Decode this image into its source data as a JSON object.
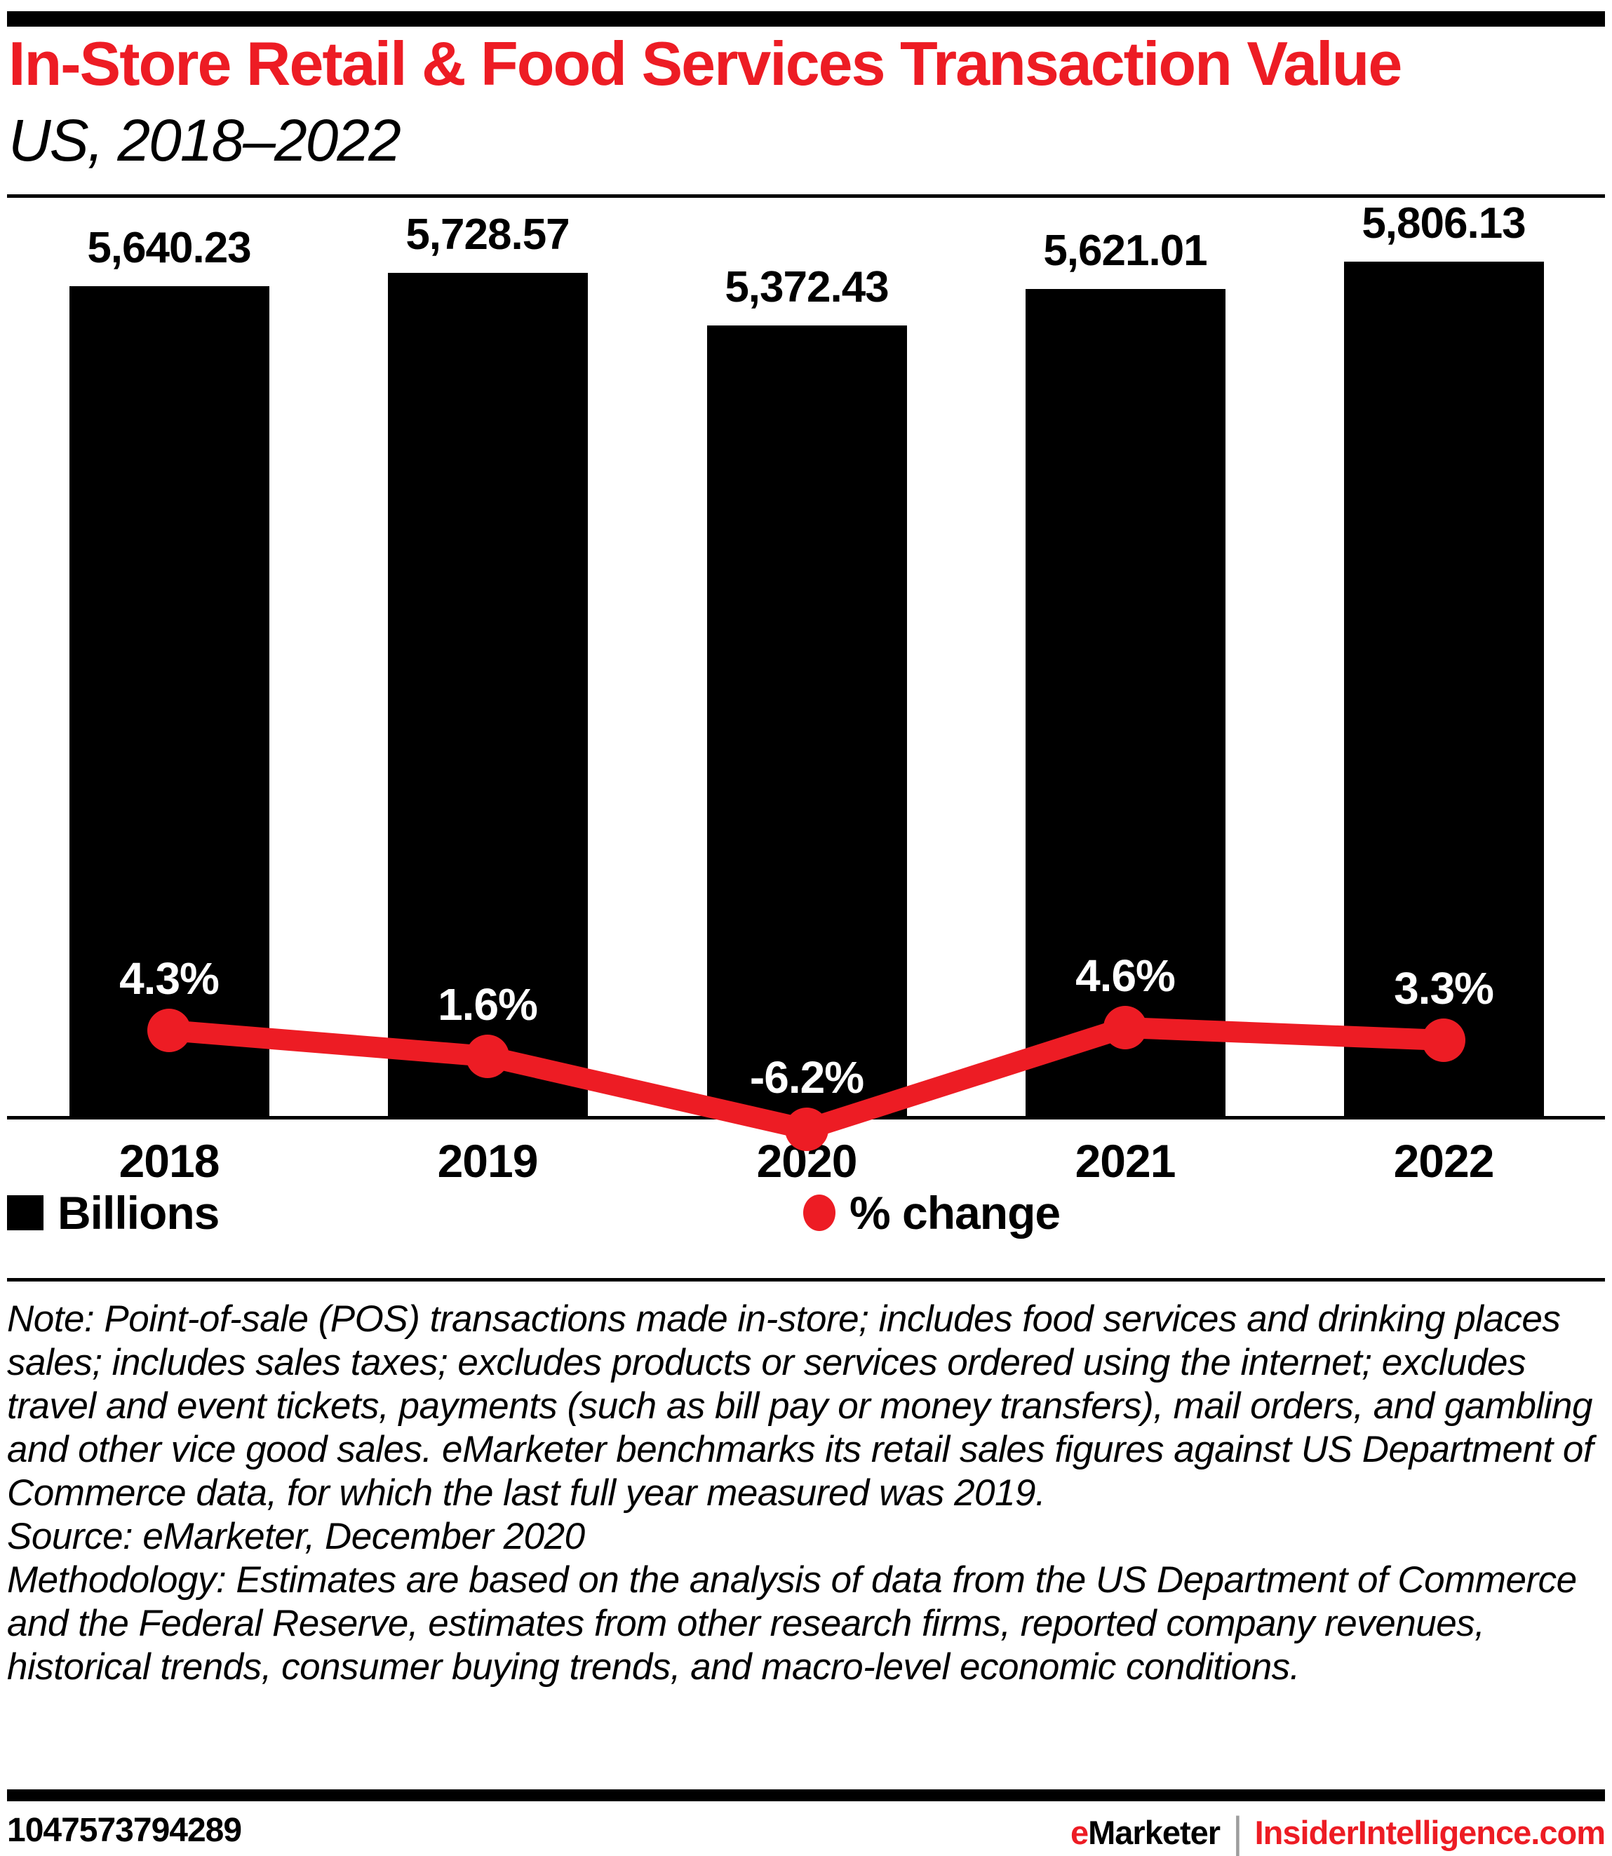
{
  "colors": {
    "accent_red": "#ed1c24",
    "bar_black": "#000000",
    "pct_label_white": "#ffffff",
    "separator_gray": "#9e9e9e"
  },
  "chart_data": {
    "type": "bar",
    "title": "In-Store Retail & Food Services Transaction Value",
    "subtitle": "US, 2018–2022",
    "categories": [
      "2018",
      "2019",
      "2020",
      "2021",
      "2022"
    ],
    "series": [
      {
        "name": "Billions",
        "chart_type": "bar",
        "color": "#000000",
        "values": [
          5640.23,
          5728.57,
          5372.43,
          5621.01,
          5806.13
        ],
        "labels": [
          "5,640.23",
          "5,728.57",
          "5,372.43",
          "5,621.01",
          "5,806.13"
        ]
      },
      {
        "name": "% change",
        "chart_type": "line",
        "color": "#ed1c24",
        "values": [
          4.3,
          1.6,
          -6.2,
          4.6,
          3.3
        ],
        "labels": [
          "4.3%",
          "1.6%",
          "-6.2%",
          "4.6%",
          "3.3%"
        ]
      }
    ],
    "legend_position": "bottom",
    "grid": false,
    "ylim": [
      0,
      5806.13
    ]
  },
  "notes": {
    "note": "Note: Point-of-sale (POS) transactions made in-store; includes food services and drinking places sales; includes sales taxes; excludes products or services ordered using the internet; excludes travel and event tickets, payments (such as bill pay or money transfers), mail orders, and gambling and other vice good sales. eMarketer benchmarks its retail sales figures against US Department of Commerce data, for which the last full year measured was 2019.",
    "source": "Source: eMarketer, December 2020",
    "methodology": "Methodology: Estimates are based on the analysis of data from the US Department of Commerce and the Federal Reserve, estimates from other research firms, reported company revenues, historical trends, consumer buying trends, and macro-level economic conditions."
  },
  "footer": {
    "chart_id": "1047573794289",
    "brand": "eMarketer",
    "separator": "|",
    "site": "InsiderIntelligence.com"
  }
}
